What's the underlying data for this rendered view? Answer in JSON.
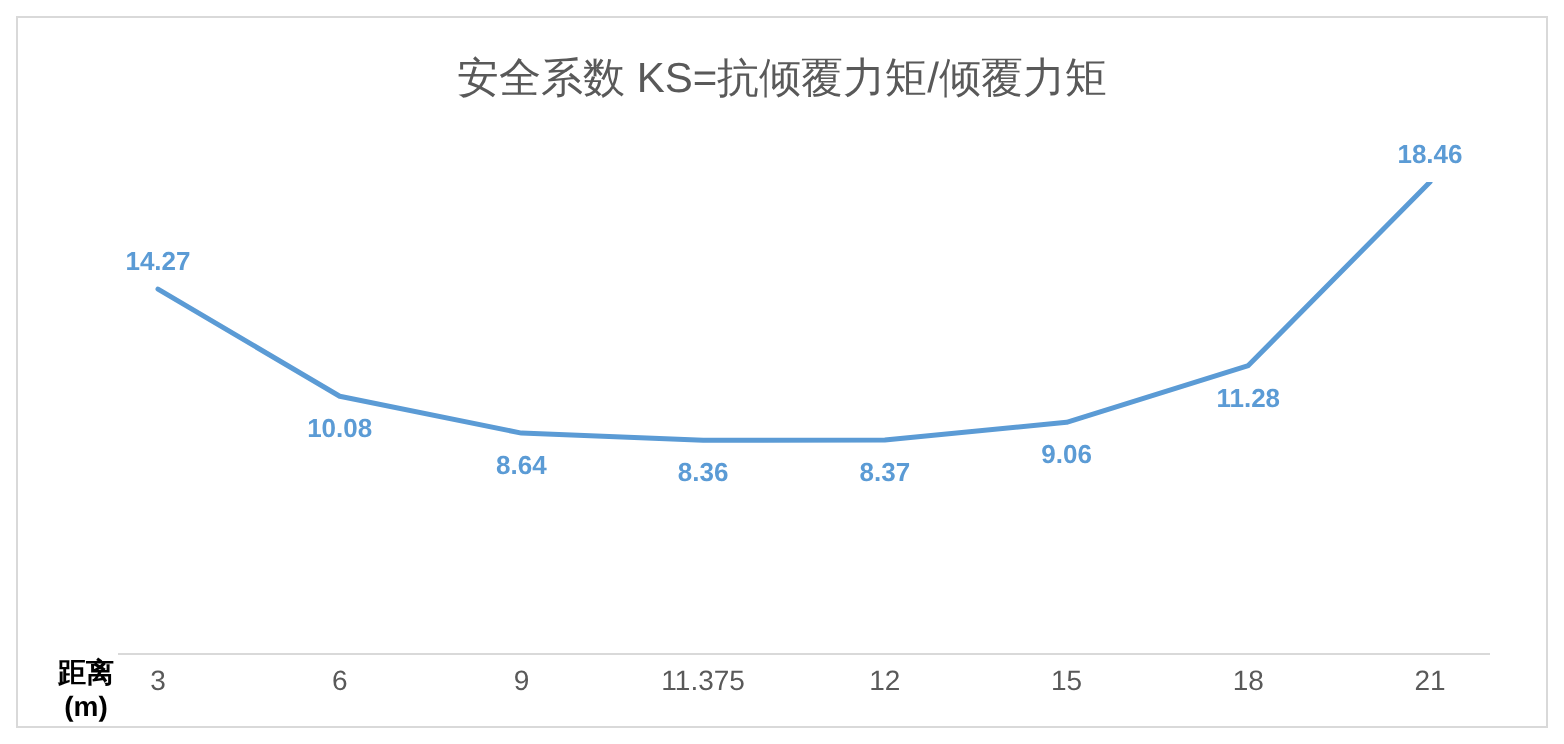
{
  "chart_data": {
    "type": "line",
    "title": "安全系数 KS=抗倾覆力矩/倾覆力矩",
    "xlabel": "距离\n(m)",
    "categories": [
      "3",
      "6",
      "9",
      "11.375",
      "12",
      "15",
      "18",
      "21"
    ],
    "series": [
      {
        "color": "#5b9bd5",
        "values": [
          14.27,
          10.08,
          8.64,
          8.36,
          8.37,
          9.06,
          11.28,
          18.46
        ]
      }
    ],
    "data_labels": true,
    "grid": false,
    "legend": false,
    "marker": "none",
    "line_style": "solid",
    "tick_labels": "x"
  }
}
